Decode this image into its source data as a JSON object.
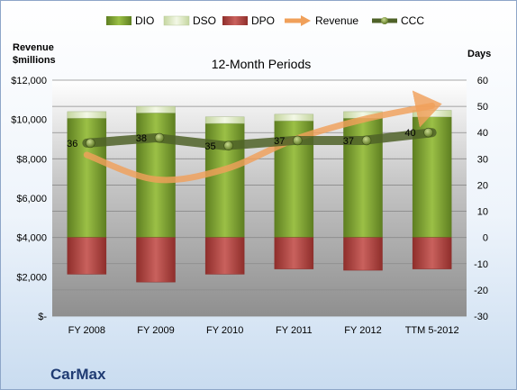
{
  "chart_data": {
    "type": "bar",
    "title": "12-Month Periods",
    "company": "CarMax",
    "categories": [
      "FY 2008",
      "FY 2009",
      "FY 2010",
      "FY 2011",
      "FY 2012",
      "TTM 5-2012"
    ],
    "y_left": {
      "label_line1": "Revenue",
      "label_line2": "$millions",
      "range": [
        0,
        12000
      ],
      "ticks": [
        "$-",
        "$2,000",
        "$4,000",
        "$6,000",
        "$8,000",
        "$10,000",
        "$12,000"
      ]
    },
    "y_right": {
      "label": "Days",
      "range": [
        -30,
        60
      ],
      "ticks": [
        "-30",
        "-20",
        "-10",
        "0",
        "10",
        "20",
        "30",
        "40",
        "50",
        "60"
      ]
    },
    "legend": [
      "DIO",
      "DSO",
      "DPO",
      "Revenue",
      "CCC"
    ],
    "legend_position": "top",
    "series": [
      {
        "name": "DIO",
        "axis": "right",
        "values": [
          45.5,
          47.5,
          43.5,
          44.5,
          45.5,
          46
        ]
      },
      {
        "name": "DSO",
        "axis": "right",
        "values": [
          2.5,
          2.5,
          2.5,
          2.5,
          2.5,
          2.5
        ]
      },
      {
        "name": "DPO",
        "axis": "right",
        "values": [
          -14,
          -17,
          -14,
          -12,
          -12.5,
          -12
        ]
      },
      {
        "name": "Revenue",
        "axis": "left",
        "values": [
          8200,
          6950,
          7470,
          8975,
          10000,
          10700
        ]
      },
      {
        "name": "CCC",
        "axis": "right",
        "values": [
          36,
          38,
          35,
          37,
          37,
          40
        ],
        "labels": [
          "36",
          "38",
          "35",
          "37",
          "37",
          "40"
        ]
      }
    ],
    "colors": {
      "DIO": "#7fa636",
      "DSO": "#e6eecf",
      "DPO": "#c0504d",
      "Revenue": "#f0a05a",
      "CCC": "#4f6228"
    },
    "grid": true
  }
}
